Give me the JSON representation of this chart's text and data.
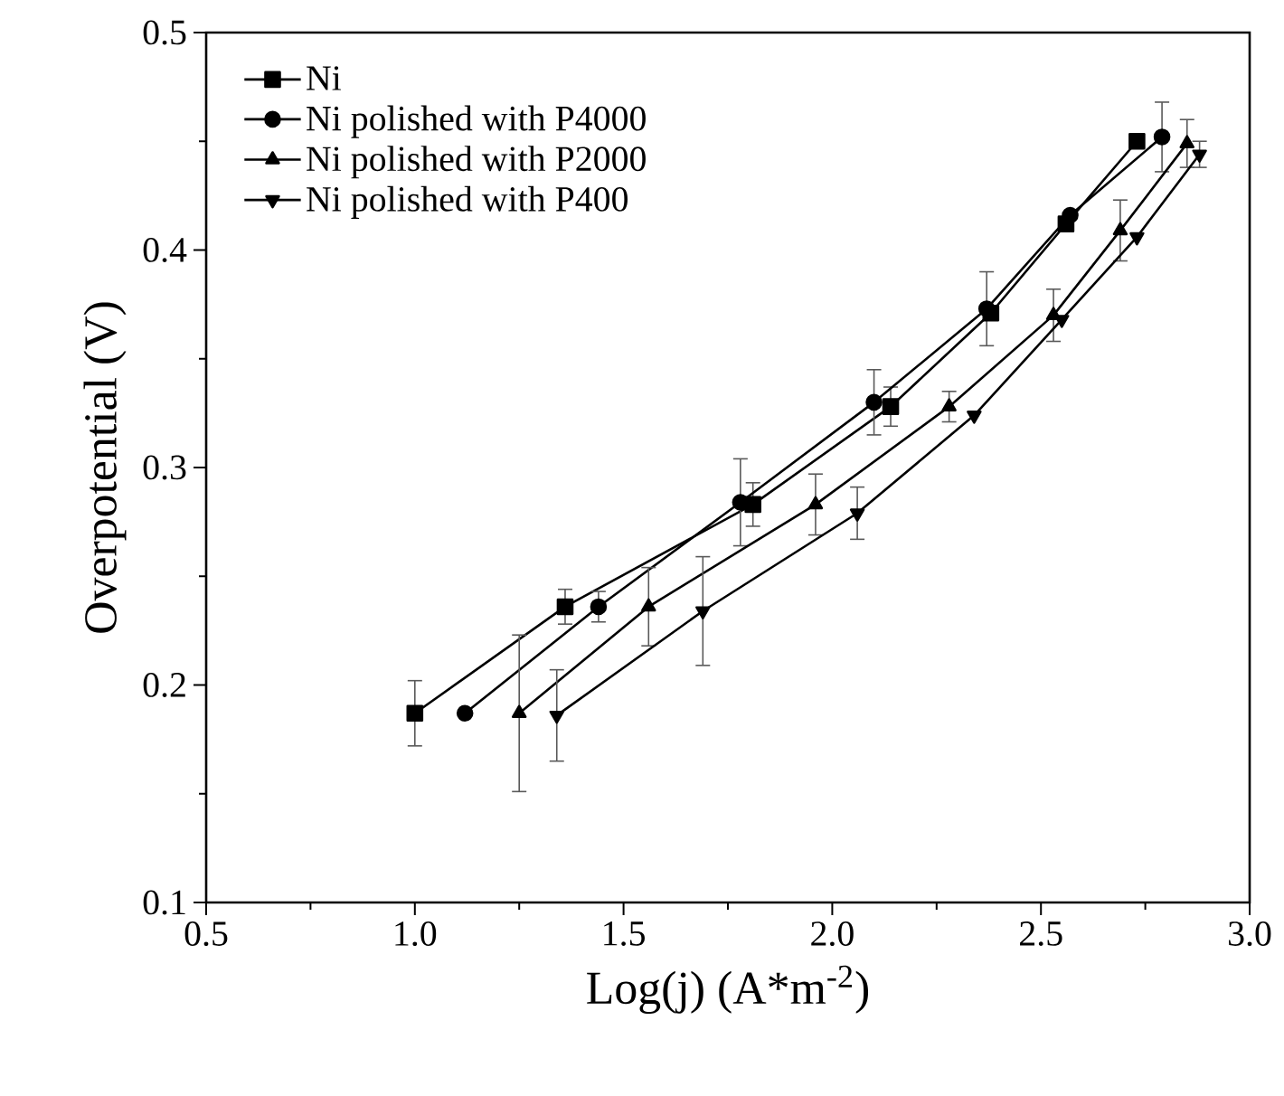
{
  "chart_data": {
    "type": "line",
    "xlabel": "Log(j) (A*m$^{-2}$)",
    "ylabel": "Overpotential (V)",
    "xlim": [
      0.5,
      3.0
    ],
    "ylim": [
      0.1,
      0.5
    ],
    "xticks": [
      {
        "value": 0.5,
        "label": "0.5"
      },
      {
        "value": 1.0,
        "label": "1.0"
      },
      {
        "value": 1.5,
        "label": "1.5"
      },
      {
        "value": 2.0,
        "label": "2.0"
      },
      {
        "value": 2.5,
        "label": "2.5"
      },
      {
        "value": 3.0,
        "label": "3.0"
      }
    ],
    "yticks": [
      0.1,
      0.2,
      0.3,
      0.4,
      0.5
    ],
    "legend": "top left",
    "grid": false,
    "series": [
      {
        "name": "Ni",
        "color": "#000000",
        "marker": "square",
        "x": [
          1.0,
          1.36,
          1.81,
          2.14,
          2.38,
          2.56,
          2.73
        ],
        "values": [
          0.187,
          0.236,
          0.283,
          0.328,
          0.371,
          0.412,
          0.45
        ],
        "errors": [
          0.015,
          0.008,
          0.01,
          0.009,
          null,
          null,
          null
        ]
      },
      {
        "name": "Ni polished with P4000",
        "color": "#000000",
        "marker": "circle",
        "x": [
          1.12,
          1.44,
          1.78,
          2.1,
          2.37,
          2.57,
          2.79
        ],
        "values": [
          0.187,
          0.236,
          0.284,
          0.33,
          0.373,
          0.416,
          0.452
        ],
        "errors": [
          null,
          0.007,
          0.02,
          0.015,
          0.017,
          null,
          0.016
        ]
      },
      {
        "name": "Ni polished with P2000",
        "color": "#000000",
        "marker": "triangle",
        "x": [
          1.25,
          1.56,
          1.96,
          2.28,
          2.53,
          2.69,
          2.85
        ],
        "values": [
          0.187,
          0.236,
          0.283,
          0.328,
          0.37,
          0.409,
          0.449
        ],
        "errors": [
          0.036,
          0.018,
          0.014,
          0.007,
          0.012,
          0.014,
          0.011
        ]
      },
      {
        "name": "Ni polished with P400",
        "color": "#000000",
        "marker": "triangle_down",
        "x": [
          1.34,
          1.69,
          2.06,
          2.34,
          2.55,
          2.73,
          2.88
        ],
        "values": [
          0.186,
          0.234,
          0.279,
          0.324,
          0.368,
          0.406,
          0.444
        ],
        "errors": [
          0.021,
          0.025,
          0.012,
          null,
          null,
          null,
          0.006
        ]
      }
    ]
  }
}
